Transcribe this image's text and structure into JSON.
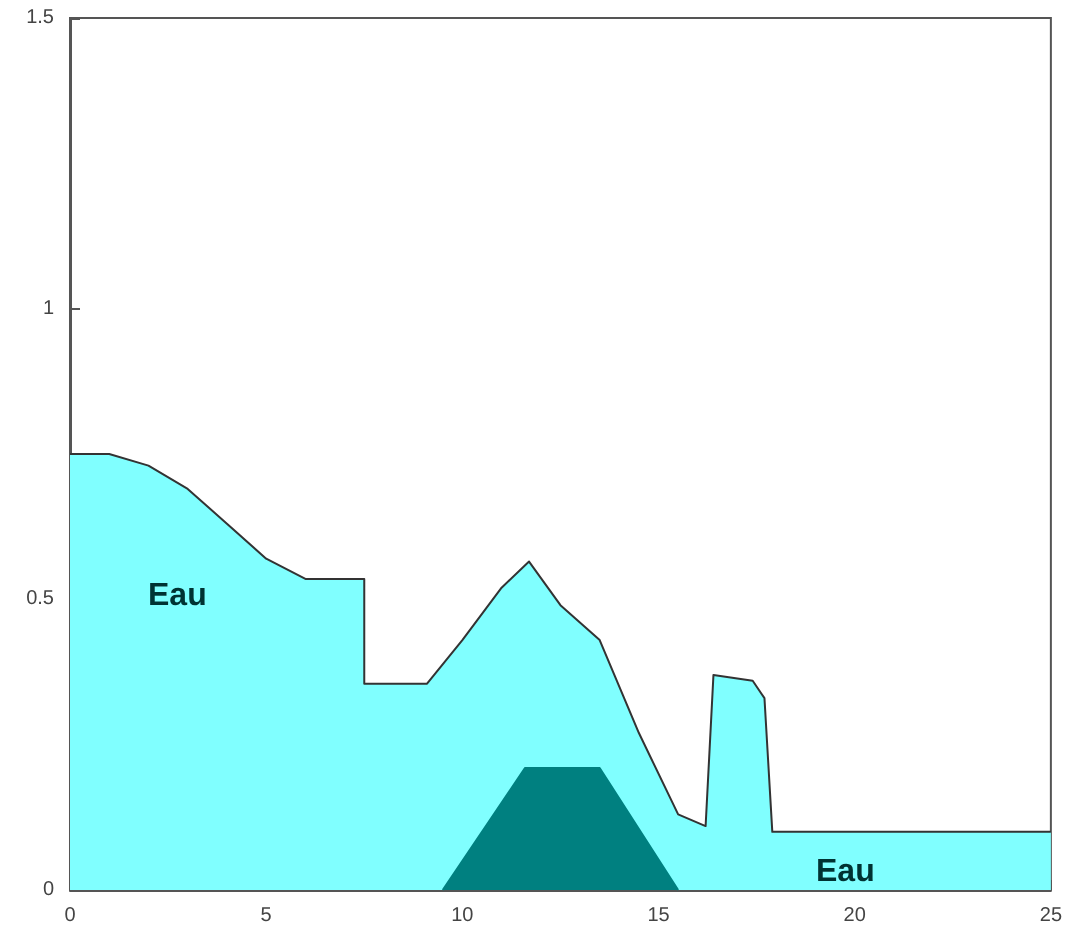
{
  "chart_data": {
    "type": "area",
    "xlim": [
      0,
      25
    ],
    "xticks": [
      0,
      5,
      10,
      15,
      20,
      25
    ],
    "ylim": [
      0,
      1.5
    ],
    "yticks": [
      0,
      0.5,
      1,
      1.5
    ],
    "grid": false,
    "series": [
      {
        "color": "#80ffff",
        "x": [
          0,
          1,
          2,
          3,
          4,
          5,
          6,
          7.5,
          7.5,
          9.1,
          10,
          11,
          11.7,
          12.5,
          13.5,
          14.5,
          15.5,
          16.2,
          16.4,
          17.4,
          17.7,
          17.9,
          25
        ],
        "values": [
          0.75,
          0.75,
          0.73,
          0.69,
          0.63,
          0.57,
          0.535,
          0.535,
          0.355,
          0.355,
          0.43,
          0.52,
          0.565,
          0.49,
          0.43,
          0.27,
          0.13,
          0.11,
          0.37,
          0.36,
          0.33,
          0.1,
          0.1
        ]
      },
      {
        "color": "#008080",
        "x": [
          9.5,
          11.6,
          13.5,
          15.5
        ],
        "values": [
          0,
          0.21,
          0.21,
          0
        ]
      }
    ],
    "annotations": [
      "Eau",
      "Eau"
    ]
  }
}
